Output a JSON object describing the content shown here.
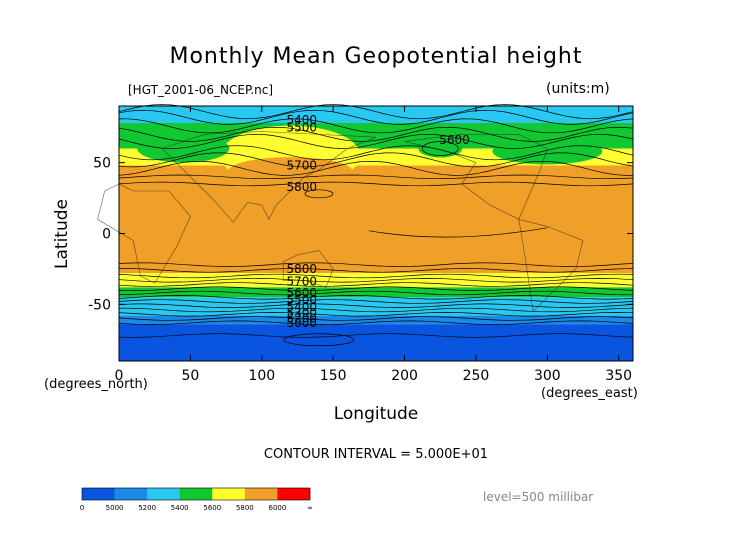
{
  "chart_data": {
    "type": "heatmap",
    "title": "Monthly Mean Geopotential height",
    "source_file": "[HGT_2001-06_NCEP.nc]",
    "units": "(units:m)",
    "xlabel": "Longitude",
    "ylabel": "Latitude",
    "x_unit_label": "(degrees_east)",
    "y_unit_label": "(degrees_north)",
    "xlim": [
      0,
      360
    ],
    "ylim": [
      -90,
      90
    ],
    "x_ticks": [
      "0",
      "50",
      "100",
      "150",
      "200",
      "250",
      "300",
      "350"
    ],
    "y_ticks": [
      "50",
      "0",
      "-50"
    ],
    "contour_interval_text": "CONTOUR INTERVAL = 5.000E+01",
    "level_text": "level=500 millibar",
    "contour_labels": [
      {
        "text": "5400",
        "lon": 128,
        "lat": 80
      },
      {
        "text": "5500",
        "lon": 128,
        "lat": 75
      },
      {
        "text": "5600",
        "lon": 235,
        "lat": 66
      },
      {
        "text": "5700",
        "lon": 128,
        "lat": 48
      },
      {
        "text": "5800",
        "lon": 128,
        "lat": 33
      },
      {
        "text": "5800",
        "lon": 128,
        "lat": -25
      },
      {
        "text": "5700",
        "lon": 128,
        "lat": -34
      },
      {
        "text": "5600",
        "lon": 128,
        "lat": -42
      },
      {
        "text": "5500",
        "lon": 128,
        "lat": -47
      },
      {
        "text": "5400",
        "lon": 128,
        "lat": -52
      },
      {
        "text": "5300",
        "lon": 128,
        "lat": -56
      },
      {
        "text": "5200",
        "lon": 128,
        "lat": -60
      },
      {
        "text": "5000",
        "lon": 128,
        "lat": -63
      }
    ],
    "colorbar": {
      "colors": [
        "#0a55e0",
        "#0a55e0",
        "#1a8ae8",
        "#1a8ae8",
        "#28c8f0",
        "#28c8f0",
        "#12c832",
        "#12c832",
        "#ffff30",
        "#ffff30",
        "#f0a028",
        "#f0a028",
        "#ff0000",
        "#ff0000"
      ],
      "labels": [
        "0",
        "5000",
        "5200",
        "5400",
        "5600",
        "5800",
        "6000",
        "∞"
      ]
    }
  }
}
